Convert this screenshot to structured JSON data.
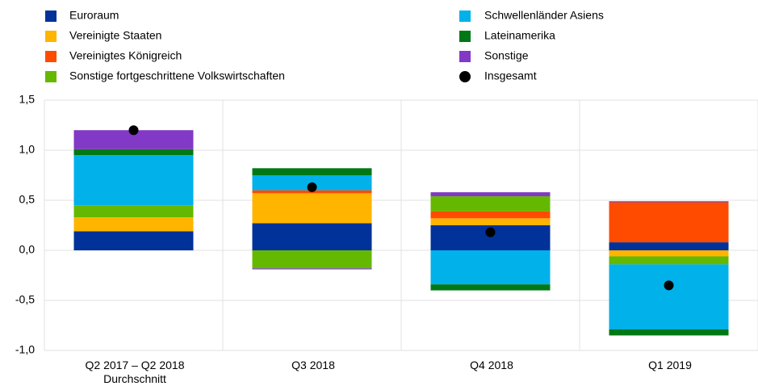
{
  "chart_data": {
    "type": "stacked_bar",
    "categories": [
      "Q2 2017 – Q2 2018\nDurchschnitt",
      "Q3 2018",
      "Q4 2018",
      "Q1 2019"
    ],
    "series": [
      {
        "name": "Euroraum",
        "color": "#003299",
        "values": [
          0.19,
          0.27,
          0.25,
          0.08
        ]
      },
      {
        "name": "Vereinigte Staaten",
        "color": "#ffb400",
        "values": [
          0.14,
          0.3,
          0.07,
          -0.06
        ]
      },
      {
        "name": "Vereinigtes Königreich",
        "color": "#ff4b00",
        "values": [
          0,
          0.03,
          0.07,
          0.4
        ]
      },
      {
        "name": "Sonstige fortgeschrittene Volkswirtschaften",
        "color": "#65b800",
        "values": [
          0.12,
          -0.18,
          0.15,
          -0.08
        ]
      },
      {
        "name": "Schwellenländer Asiens",
        "color": "#00b1ea",
        "values": [
          0.5,
          0.15,
          -0.34,
          -0.65
        ]
      },
      {
        "name": "Lateinamerika",
        "color": "#007816",
        "values": [
          0.06,
          0.07,
          -0.06,
          -0.06
        ]
      },
      {
        "name": "Sonstige",
        "color": "#8139c6",
        "values": [
          0.19,
          -0.01,
          0.04,
          0.01
        ]
      }
    ],
    "totals": {
      "name": "Insgesamt",
      "color": "#000000",
      "values": [
        1.2,
        0.63,
        0.18,
        -0.35
      ]
    },
    "ylim": [
      -1.0,
      1.5
    ],
    "yticks": [
      {
        "value": -1.0,
        "label": "-1,0"
      },
      {
        "value": -0.5,
        "label": "-0,5"
      },
      {
        "value": 0,
        "label": "0,0"
      },
      {
        "value": 0.5,
        "label": "0,5"
      },
      {
        "value": 1.0,
        "label": "1,0"
      },
      {
        "value": 1.5,
        "label": "1,5"
      }
    ],
    "grid": true
  }
}
